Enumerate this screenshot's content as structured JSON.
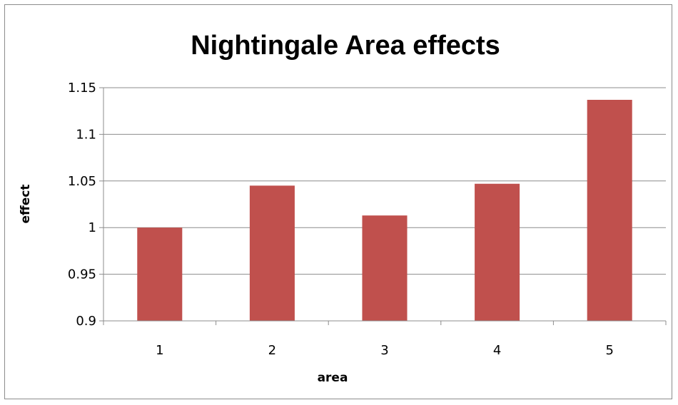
{
  "chart_data": {
    "type": "bar",
    "title": "Nightingale Area effects",
    "xlabel": "area",
    "ylabel": "effect",
    "categories": [
      "1",
      "2",
      "3",
      "4",
      "5"
    ],
    "values": [
      1.0,
      1.045,
      1.013,
      1.047,
      1.137
    ],
    "ylim": [
      0.9,
      1.15
    ],
    "yticks": [
      "0.9",
      "0.95",
      "1",
      "1.05",
      "1.1",
      "1.15"
    ],
    "grid": true,
    "legend": "none",
    "bar_color": "#c0504d"
  }
}
